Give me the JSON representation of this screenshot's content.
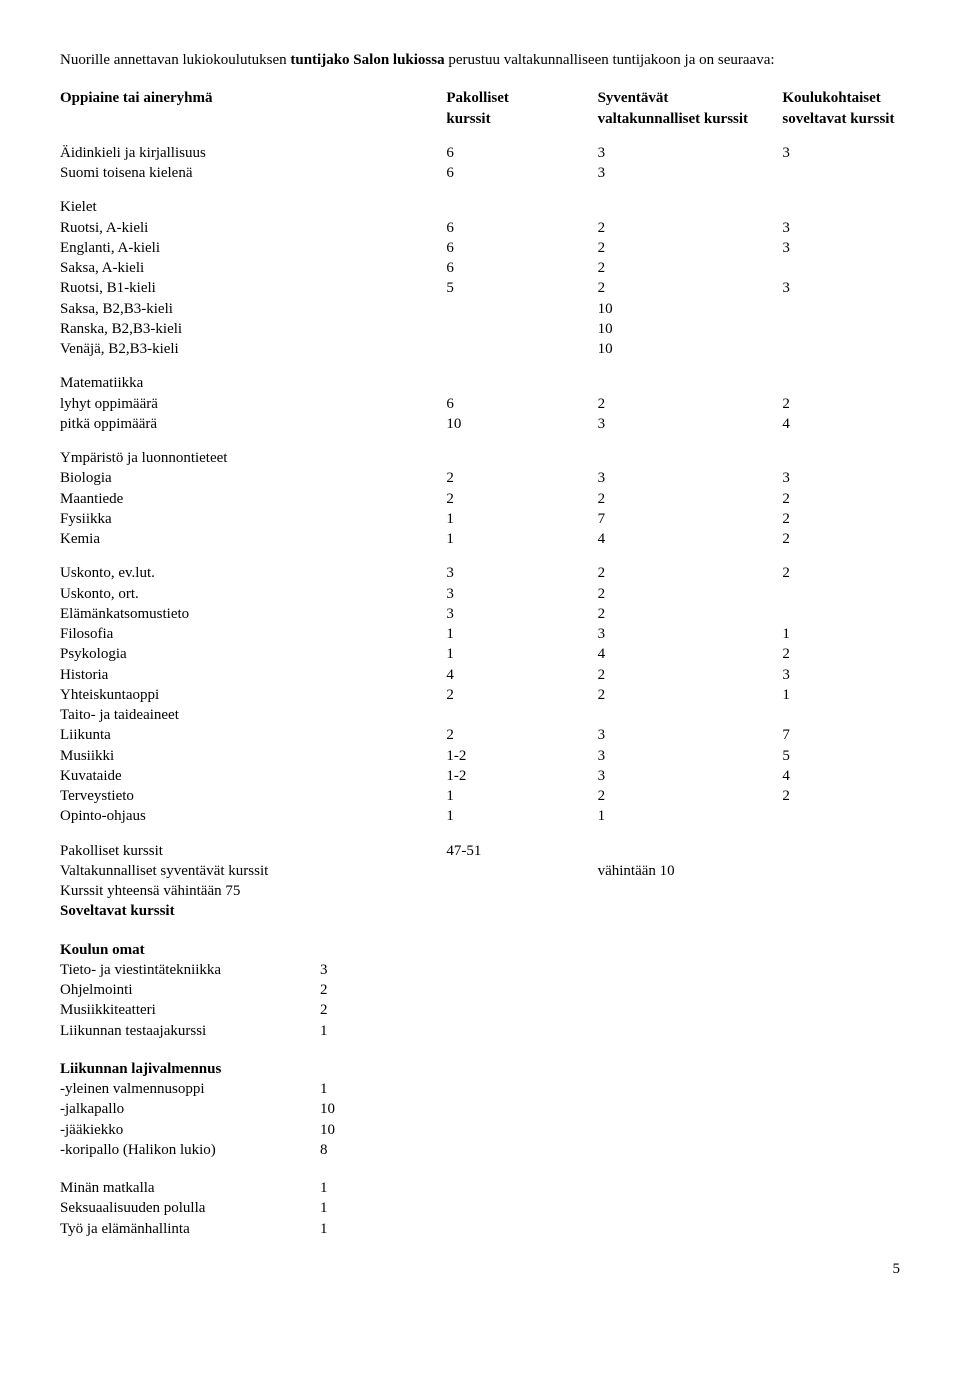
{
  "intro": {
    "pre": "Nuorille annettavan lukiokoulutuksen ",
    "bold": "tuntijako Salon lukiossa",
    "post": " perustuu valtakunnalliseen tuntijakoon ja on seuraava:"
  },
  "headers": {
    "col0a": "Oppiaine tai aineryhmä",
    "col1a": "Pakolliset",
    "col1b": "kurssit",
    "col2a": "Syventävät",
    "col2b": "valtakunnalliset kurssit",
    "col3a": "Koulukohtaiset",
    "col3b": "soveltavat kurssit"
  },
  "rows": [
    {
      "label": "Äidinkieli ja kirjallisuus",
      "a": "6",
      "b": "3",
      "c": "3"
    },
    {
      "label": "Suomi toisena kielenä",
      "a": "6",
      "b": "3",
      "c": ""
    }
  ],
  "kielet_title": "Kielet",
  "kielet": [
    {
      "label": "Ruotsi, A-kieli",
      "a": "6",
      "b": "2",
      "c": "3"
    },
    {
      "label": "Englanti, A-kieli",
      "a": "6",
      "b": "2",
      "c": "3"
    },
    {
      "label": "Saksa, A-kieli",
      "a": "6",
      "b": "2",
      "c": ""
    },
    {
      "label": "Ruotsi, B1-kieli",
      "a": "5",
      "b": "2",
      "c": "3"
    },
    {
      "label": "Saksa, B2,B3-kieli",
      "a": "",
      "b": "10",
      "c": ""
    },
    {
      "label": "Ranska, B2,B3-kieli",
      "a": "",
      "b": "10",
      "c": ""
    },
    {
      "label": "Venäjä, B2,B3-kieli",
      "a": "",
      "b": "10",
      "c": ""
    }
  ],
  "matematiikka_title": "Matematiikka",
  "matematiikka": [
    {
      "label": "lyhyt oppimäärä",
      "a": "6",
      "b": "2",
      "c": "2"
    },
    {
      "label": "pitkä oppimäärä",
      "a": "10",
      "b": "3",
      "c": "4"
    }
  ],
  "ymparisto_title": "Ympäristö ja luonnontieteet",
  "ymparisto": [
    {
      "label": "Biologia",
      "a": "2",
      "b": "3",
      "c": "3"
    },
    {
      "label": "Maantiede",
      "a": "2",
      "b": "2",
      "c": "2"
    },
    {
      "label": "Fysiikka",
      "a": "1",
      "b": "7",
      "c": "2"
    },
    {
      "label": "Kemia",
      "a": "1",
      "b": "4",
      "c": "2"
    }
  ],
  "muut": [
    {
      "label": "Uskonto, ev.lut.",
      "a": "3",
      "b": "2",
      "c": "2"
    },
    {
      "label": "Uskonto, ort.",
      "a": "3",
      "b": "2",
      "c": ""
    },
    {
      "label": "Elämänkatsomustieto",
      "a": "3",
      "b": "2",
      "c": ""
    },
    {
      "label": "Filosofia",
      "a": "1",
      "b": "3",
      "c": "1"
    },
    {
      "label": "Psykologia",
      "a": "1",
      "b": "4",
      "c": "2"
    },
    {
      "label": "Historia",
      "a": "4",
      "b": "2",
      "c": "3"
    },
    {
      "label": "Yhteiskuntaoppi",
      "a": "2",
      "b": "2",
      "c": "1"
    },
    {
      "label": "Taito- ja taideaineet",
      "a": "",
      "b": "",
      "c": ""
    },
    {
      "label": "Liikunta",
      "a": "2",
      "b": "3",
      "c": "7"
    },
    {
      "label": "Musiikki",
      "a": "1-2",
      "b": "3",
      "c": "5"
    },
    {
      "label": "Kuvataide",
      "a": "1-2",
      "b": "3",
      "c": "4"
    },
    {
      "label": "Terveystieto",
      "a": "1",
      "b": "2",
      "c": "2"
    },
    {
      "label": "Opinto-ohjaus",
      "a": "1",
      "b": "1",
      "c": ""
    }
  ],
  "summary": [
    {
      "label": "Pakolliset kurssit",
      "a": "47-51",
      "b": "",
      "c": ""
    },
    {
      "label": "Valtakunnalliset syventävät kurssit",
      "a": "",
      "b": "vähintään 10",
      "c": ""
    },
    {
      "label": "Kurssit yhteensä vähintään 75",
      "a": "",
      "b": "",
      "c": ""
    }
  ],
  "soveltavat_title": "Soveltavat kurssit",
  "koulun_omat_title": "Koulun omat",
  "koulun_omat": [
    {
      "label": "Tieto- ja viestintätekniikka",
      "val": "3"
    },
    {
      "label": "Ohjelmointi",
      "val": "2"
    },
    {
      "label": "Musiikkiteatteri",
      "val": "2"
    },
    {
      "label": "Liikunnan testaajakurssi",
      "val": "1"
    }
  ],
  "lajivalmennus_title": "Liikunnan lajivalmennus",
  "lajivalmennus": [
    {
      "label": "-yleinen valmennusoppi",
      "val": "1"
    },
    {
      "label": "-jalkapallo",
      "val": "10"
    },
    {
      "label": "-jääkiekko",
      "val": "10"
    },
    {
      "label": "-koripallo (Halikon lukio)",
      "val": "8"
    }
  ],
  "loppu": [
    {
      "label": "Minän matkalla",
      "val": "1"
    },
    {
      "label": "Seksuaalisuuden polulla",
      "val": "1"
    },
    {
      "label": "Työ ja elämänhallinta",
      "val": "1"
    }
  ],
  "page_number": "5"
}
